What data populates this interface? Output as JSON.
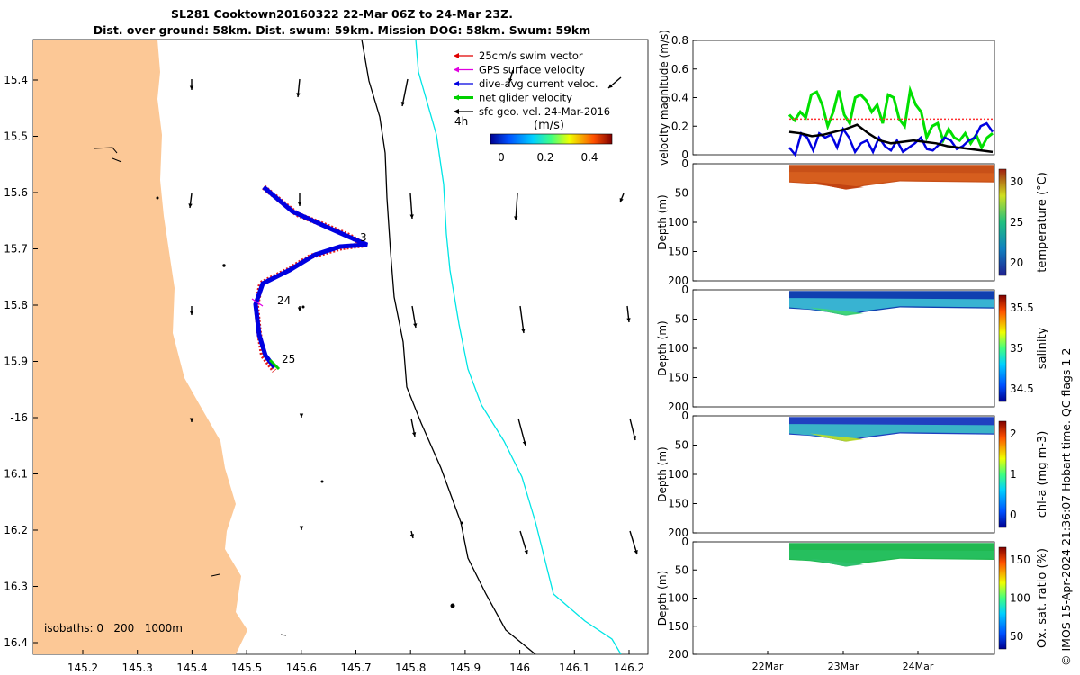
{
  "title_line1": "SL281 Cooktown20160322 22-Mar 06Z to 24-Mar 23Z.",
  "title_line2": "Dist. over ground: 58km. Dist. swum: 59km. Mission DOG: 58km. Swum: 59km",
  "credit": "© IMOS 15-Apr-2024 21:36:07 Hobart time. QC flags 1  2",
  "map": {
    "lat_ticks": [
      "15.4",
      "15.5",
      "15.6",
      "15.7",
      "15.8",
      "15.9",
      "-16",
      "16.1",
      "16.2",
      "16.3",
      "16.4"
    ],
    "lon_ticks": [
      "145.2",
      "145.3",
      "145.4",
      "145.5",
      "145.6",
      "145.7",
      "145.8",
      "145.9",
      "146",
      "146.1",
      "146.2"
    ],
    "legend": [
      {
        "label": "25cm/s swim vector",
        "color": "#e00000"
      },
      {
        "label": "GPS surface velocity",
        "color": "#e000e0"
      },
      {
        "label": "dive-avg current veloc.",
        "color": "#0000e0"
      },
      {
        "label": "net glider velocity",
        "color": "#00d000"
      },
      {
        "label": "sfc geo. vel. 24-Mar-2016",
        "color": "#000000"
      }
    ],
    "time_step_label": "4h",
    "colorbar_title": "(m/s)",
    "colorbar_ticks": [
      "0",
      "0.2",
      "0.4"
    ],
    "isobaths_label": "isobaths: 0   200   1000m",
    "day_labels": [
      {
        "text": "3"
      },
      {
        "text": "24"
      },
      {
        "text": "25"
      }
    ],
    "colors": {
      "land": "#fcc896",
      "isobath_200": "#000000",
      "isobath_1000": "#00e5e5"
    }
  },
  "chart_data": [
    {
      "type": "line",
      "ylabel": "velocity magnitude (m/s)",
      "ylim": [
        0,
        0.8
      ],
      "yticks": [
        "0",
        "0.2",
        "0.4",
        "0.6",
        "0.8"
      ],
      "x_start": "22-Mar 06Z",
      "x_end": "24-Mar 23Z",
      "series": [
        {
          "color": "#00e000",
          "values": [
            0.28,
            0.24,
            0.3,
            0.26,
            0.42,
            0.44,
            0.35,
            0.2,
            0.3,
            0.45,
            0.28,
            0.22,
            0.4,
            0.42,
            0.38,
            0.3,
            0.35,
            0.22,
            0.42,
            0.4,
            0.25,
            0.2,
            0.45,
            0.35,
            0.3,
            0.12,
            0.2,
            0.22,
            0.1,
            0.18,
            0.12,
            0.1,
            0.15,
            0.08,
            0.14,
            0.05,
            0.12,
            0.15
          ]
        },
        {
          "color": "#0000e0",
          "values": [
            0.05,
            0.0,
            0.15,
            0.12,
            0.03,
            0.15,
            0.12,
            0.14,
            0.05,
            0.18,
            0.12,
            0.02,
            0.08,
            0.1,
            0.02,
            0.12,
            0.06,
            0.03,
            0.1,
            0.02,
            0.05,
            0.08,
            0.12,
            0.04,
            0.03,
            0.07,
            0.12,
            0.1,
            0.04,
            0.06,
            0.1,
            0.12,
            0.2,
            0.22,
            0.16
          ]
        },
        {
          "color": "#000000",
          "values": [
            0.16,
            0.15,
            0.13,
            0.14,
            0.16,
            0.18,
            0.21,
            0.15,
            0.1,
            0.08,
            0.09,
            0.1,
            0.09,
            0.08,
            0.06,
            0.05,
            0.04,
            0.03,
            0.02
          ]
        },
        {
          "color": "#ff3030",
          "style": "dotted",
          "values": [
            0.25,
            0.25,
            0.25,
            0.25,
            0.25,
            0.25,
            0.25,
            0.25,
            0.25,
            0.25,
            0.25,
            0.25
          ]
        }
      ]
    },
    {
      "type": "heatmap",
      "ylabel": "Depth (m)",
      "colorbar_label": "temperature (°C)",
      "colorbar_ticks": [
        "20",
        "25",
        "30"
      ],
      "ylim": [
        0,
        200
      ]
    },
    {
      "type": "heatmap",
      "ylabel": "Depth (m)",
      "colorbar_label": "salinity",
      "colorbar_ticks": [
        "34.5",
        "35",
        "35.5"
      ],
      "ylim": [
        0,
        200
      ]
    },
    {
      "type": "heatmap",
      "ylabel": "Depth (m)",
      "colorbar_label": "chl-a (mg m-3)",
      "colorbar_ticks": [
        "0",
        "1",
        "2"
      ],
      "ylim": [
        0,
        200
      ]
    },
    {
      "type": "heatmap",
      "ylabel": "Depth (m)",
      "colorbar_label": "Ox. sat. ratio (%)",
      "colorbar_ticks": [
        "50",
        "100",
        "150"
      ],
      "ylim": [
        0,
        200
      ]
    }
  ],
  "depth_ticks": [
    "0",
    "50",
    "100",
    "150",
    "200"
  ],
  "date_ticks": [
    "22Mar",
    "23Mar",
    "24Mar"
  ]
}
